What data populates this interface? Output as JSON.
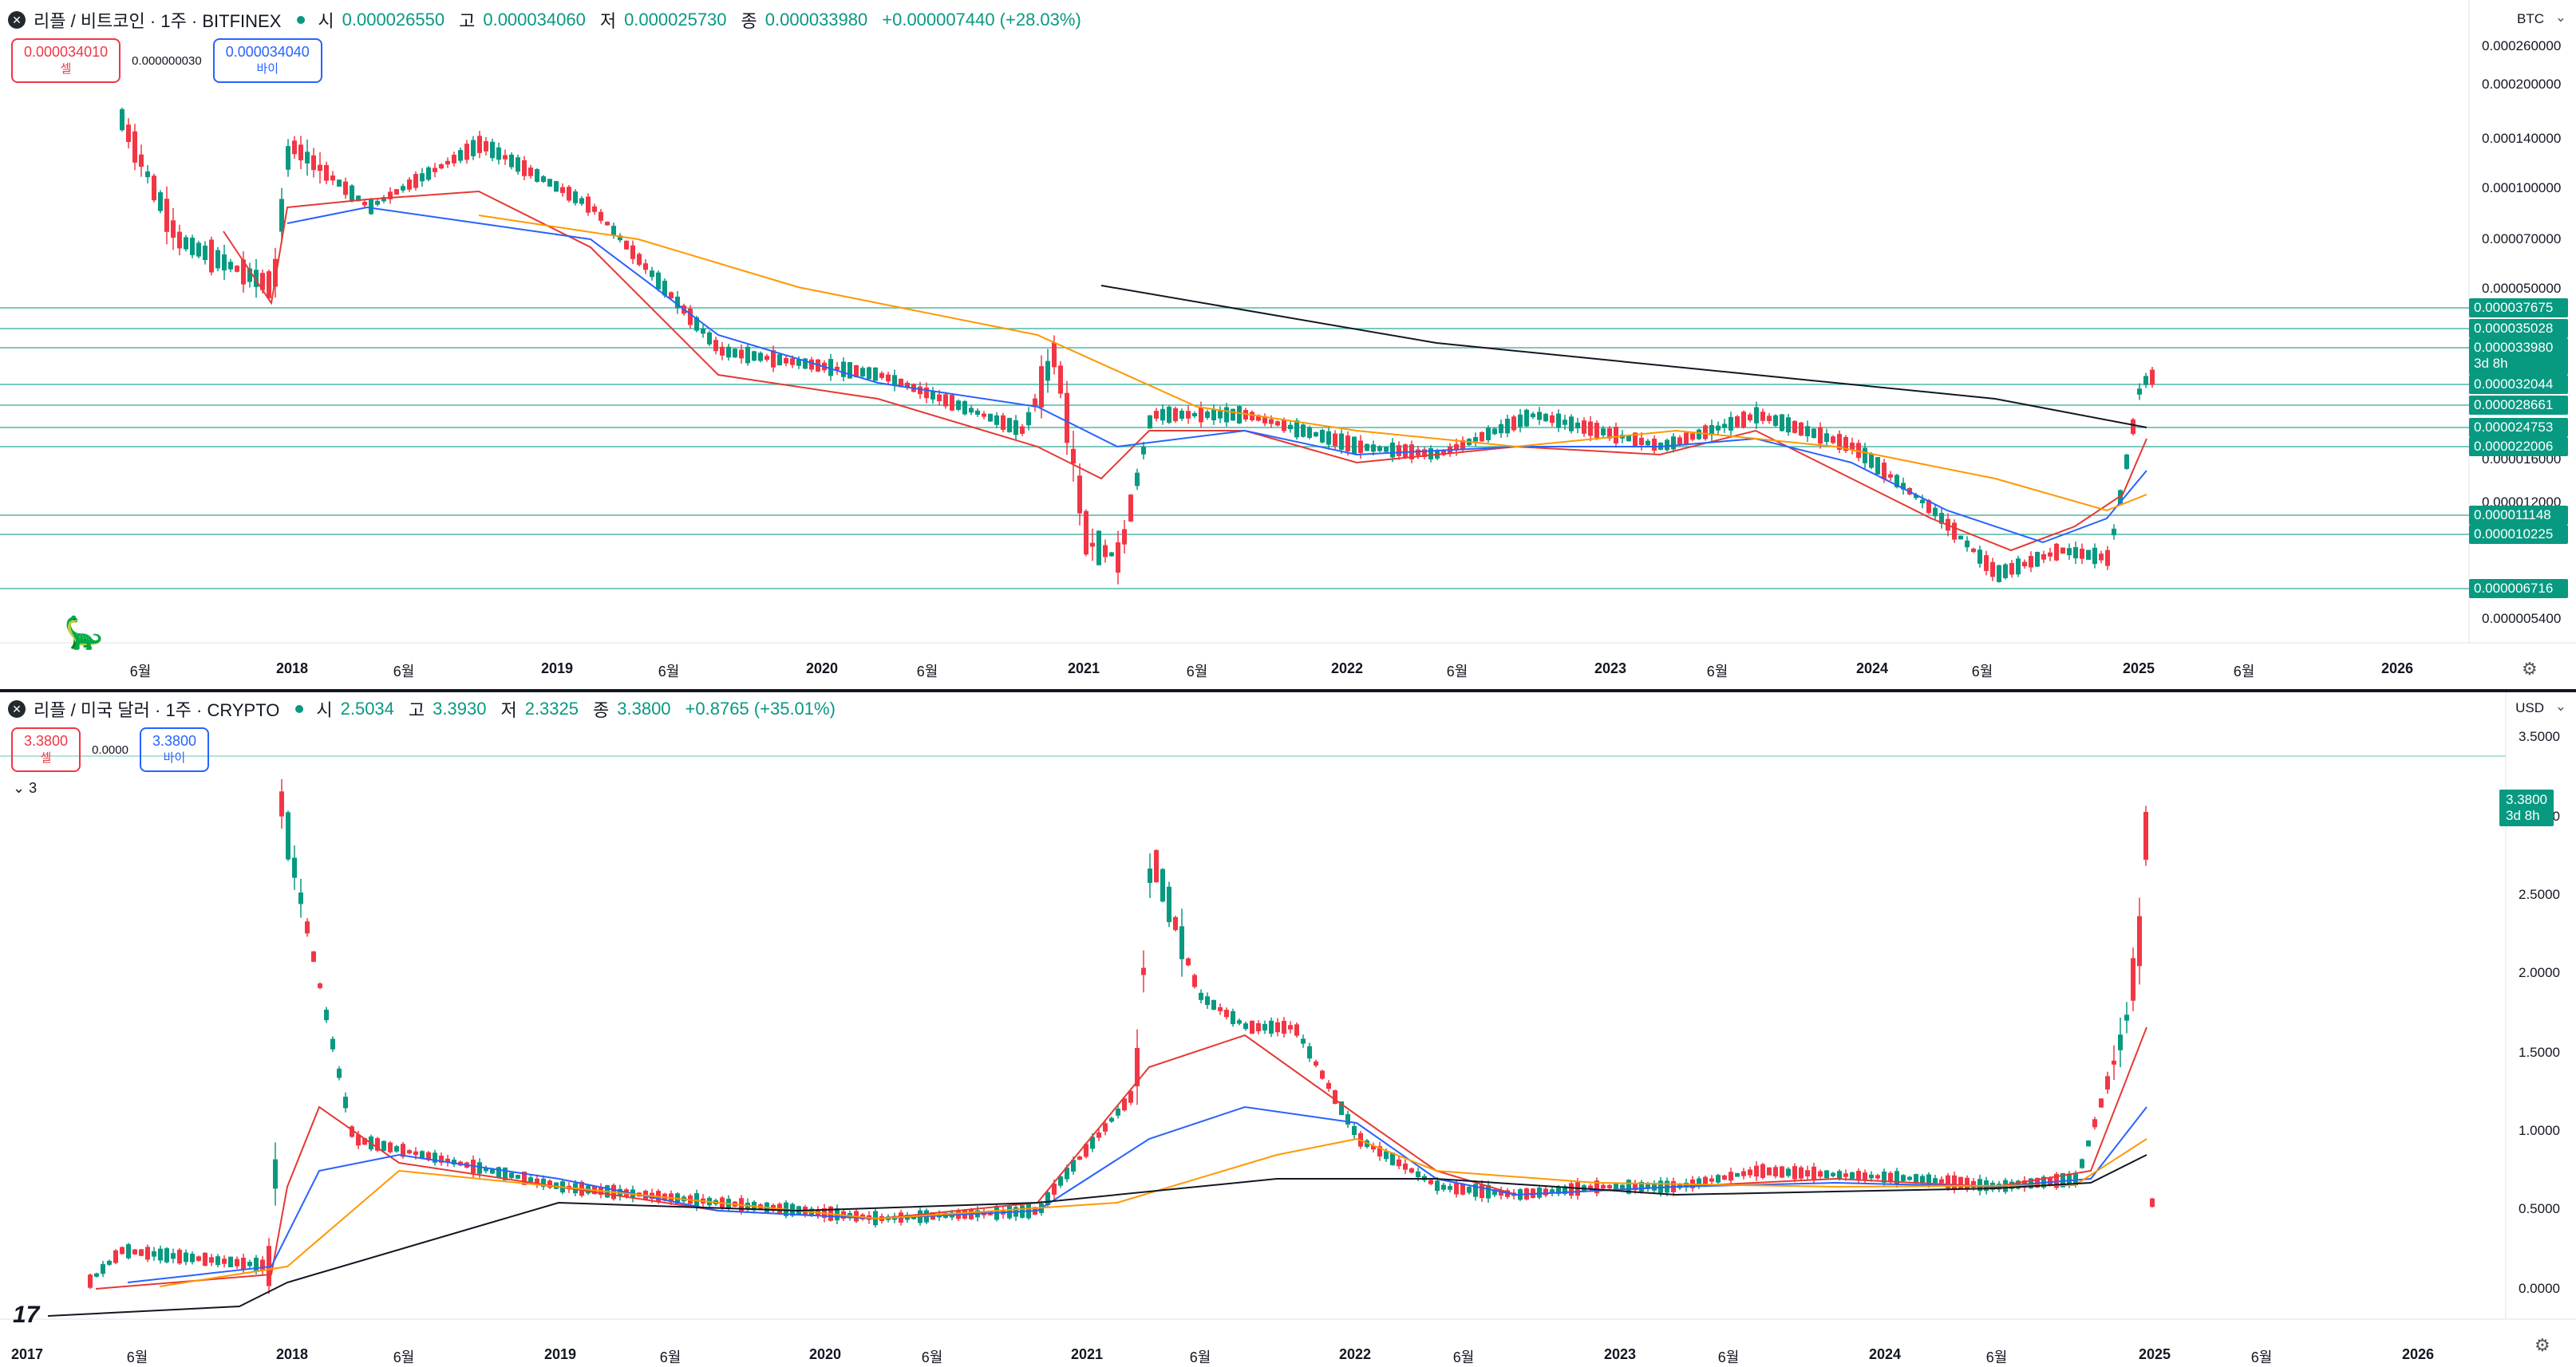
{
  "colors": {
    "up": "#089981",
    "down": "#f23645",
    "ma_red": "#e53935",
    "ma_blue": "#2962ff",
    "ma_orange": "#ff9800",
    "ma_black": "#131722"
  },
  "pane1": {
    "symbol_title": "리플 / 비트코인 · 1주 · BITFINEX",
    "ohlc": {
      "o_label": "시",
      "o": "0.000026550",
      "h_label": "고",
      "h": "0.000034060",
      "l_label": "저",
      "l": "0.000025730",
      "c_label": "종",
      "c": "0.000033980",
      "change": "+0.000007440 (+28.03%)"
    },
    "sell_price": "0.000034010",
    "sell_label": "셀",
    "spread": "0.000000030",
    "buy_price": "0.000034040",
    "buy_label": "바이",
    "currency": "BTC",
    "price_labels": [
      "0.000260000",
      "0.000200000",
      "0.000140000",
      "0.000100000",
      "0.000070000",
      "0.000050000",
      "0.000016000",
      "0.000012000",
      "0.000005400"
    ],
    "hline_badges": [
      "0.000037675",
      "0.000035028",
      "0.000033980",
      "0.000032044",
      "0.000028661",
      "0.000024753",
      "0.000022006",
      "0.000011148",
      "0.000010225",
      "0.000006716"
    ],
    "countdown": "3d 8h",
    "time_labels": [
      "6월",
      "2018",
      "6월",
      "2019",
      "6월",
      "2020",
      "6월",
      "2021",
      "6월",
      "2022",
      "6월",
      "2023",
      "6월",
      "2024",
      "6월",
      "2025",
      "6월",
      "2026"
    ]
  },
  "pane2": {
    "symbol_title": "리플 / 미국 달러 · 1주 · CRYPTO",
    "ohlc": {
      "o_label": "시",
      "o": "2.5034",
      "h_label": "고",
      "h": "3.3930",
      "l_label": "저",
      "l": "2.3325",
      "c_label": "종",
      "c": "3.3800",
      "change": "+0.8765 (+35.01%)"
    },
    "sell_price": "3.3800",
    "sell_label": "셀",
    "spread": "0.0000",
    "buy_price": "3.3800",
    "buy_label": "바이",
    "indicators_collapsed": "3",
    "currency": "USD",
    "price_labels": [
      "3.5000",
      "3.0000",
      "2.5000",
      "2.0000",
      "1.5000",
      "1.0000",
      "0.5000",
      "0.0000"
    ],
    "last_price": "3.3800",
    "countdown": "3d 8h",
    "time_labels": [
      "2017",
      "6월",
      "2018",
      "6월",
      "2019",
      "6월",
      "2020",
      "6월",
      "2021",
      "6월",
      "2022",
      "6월",
      "2023",
      "6월",
      "2024",
      "6월",
      "2025",
      "6월",
      "2026"
    ]
  },
  "icons": {
    "settings": "gear-icon",
    "collapse": "chevron-down-icon",
    "logo": "tradingview-logo"
  }
}
